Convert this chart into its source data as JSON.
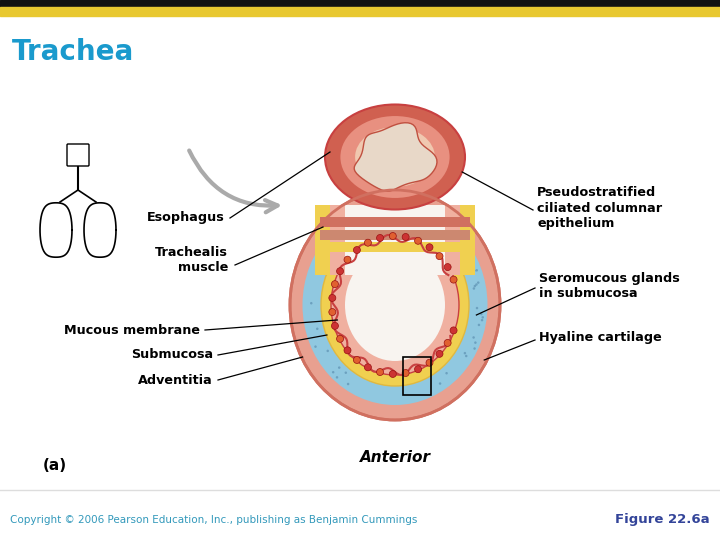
{
  "title": "Trachea",
  "title_color": "#1a9acd",
  "title_fontsize": 20,
  "background_color": "#ffffff",
  "top_bar_black": "#111111",
  "top_bar_yellow": "#e8c830",
  "copyright_text": "Copyright © 2006 Pearson Education, Inc., publishing as Benjamin Cummings",
  "copyright_color": "#3399bb",
  "figure_label": "Figure 22.6a",
  "figure_label_color": "#334499",
  "colors": {
    "outer_pink": "#e8a090",
    "outer_pink_dark": "#d07060",
    "middle_blue": "#90c8e0",
    "blue_dots": "#7ab0cc",
    "inner_yellow": "#f0d050",
    "inner_yellow_dark": "#e0b840",
    "lumen_white": "#f8f4f0",
    "lumen_border": "#c84040",
    "esoph_outer_dark": "#d06050",
    "esoph_outer_med": "#e89080",
    "esoph_inner_light": "#f0c8b0",
    "esoph_core": "#e8d8c8",
    "esoph_core_border": "#c05040",
    "red_bumps": "#cc3333",
    "orange_bumps": "#e06030",
    "gray_arrow": "#aaaaaa",
    "gray_arrow_dark": "#888888",
    "pink_layer": "#f0b0a0",
    "connector_color": "#cc8870"
  }
}
